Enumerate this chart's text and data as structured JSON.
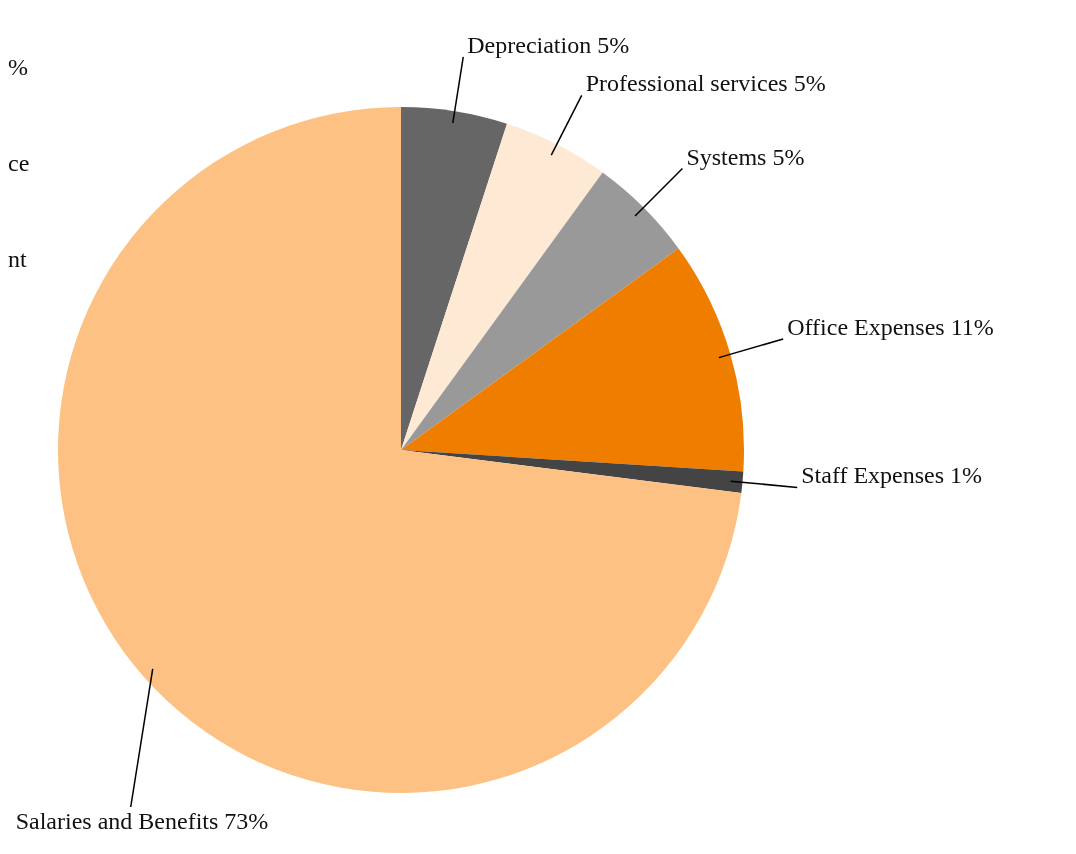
{
  "chart_data": {
    "type": "pie",
    "categories": [
      "Depreciation",
      "Professional services",
      "Systems",
      "Office Expenses",
      "Staff Expenses",
      "Salaries and Benefits"
    ],
    "values": [
      5,
      5,
      5,
      11,
      1,
      73
    ],
    "colors": [
      "#666666",
      "#fde9d4",
      "#999999",
      "#ef7d00",
      "#444444",
      "#fdc283"
    ],
    "value_labels": [
      "5%",
      "5%",
      "5%",
      "11%",
      "1%",
      "73%"
    ],
    "annotations": [
      "%",
      "ce",
      "nt"
    ],
    "legend": false
  }
}
